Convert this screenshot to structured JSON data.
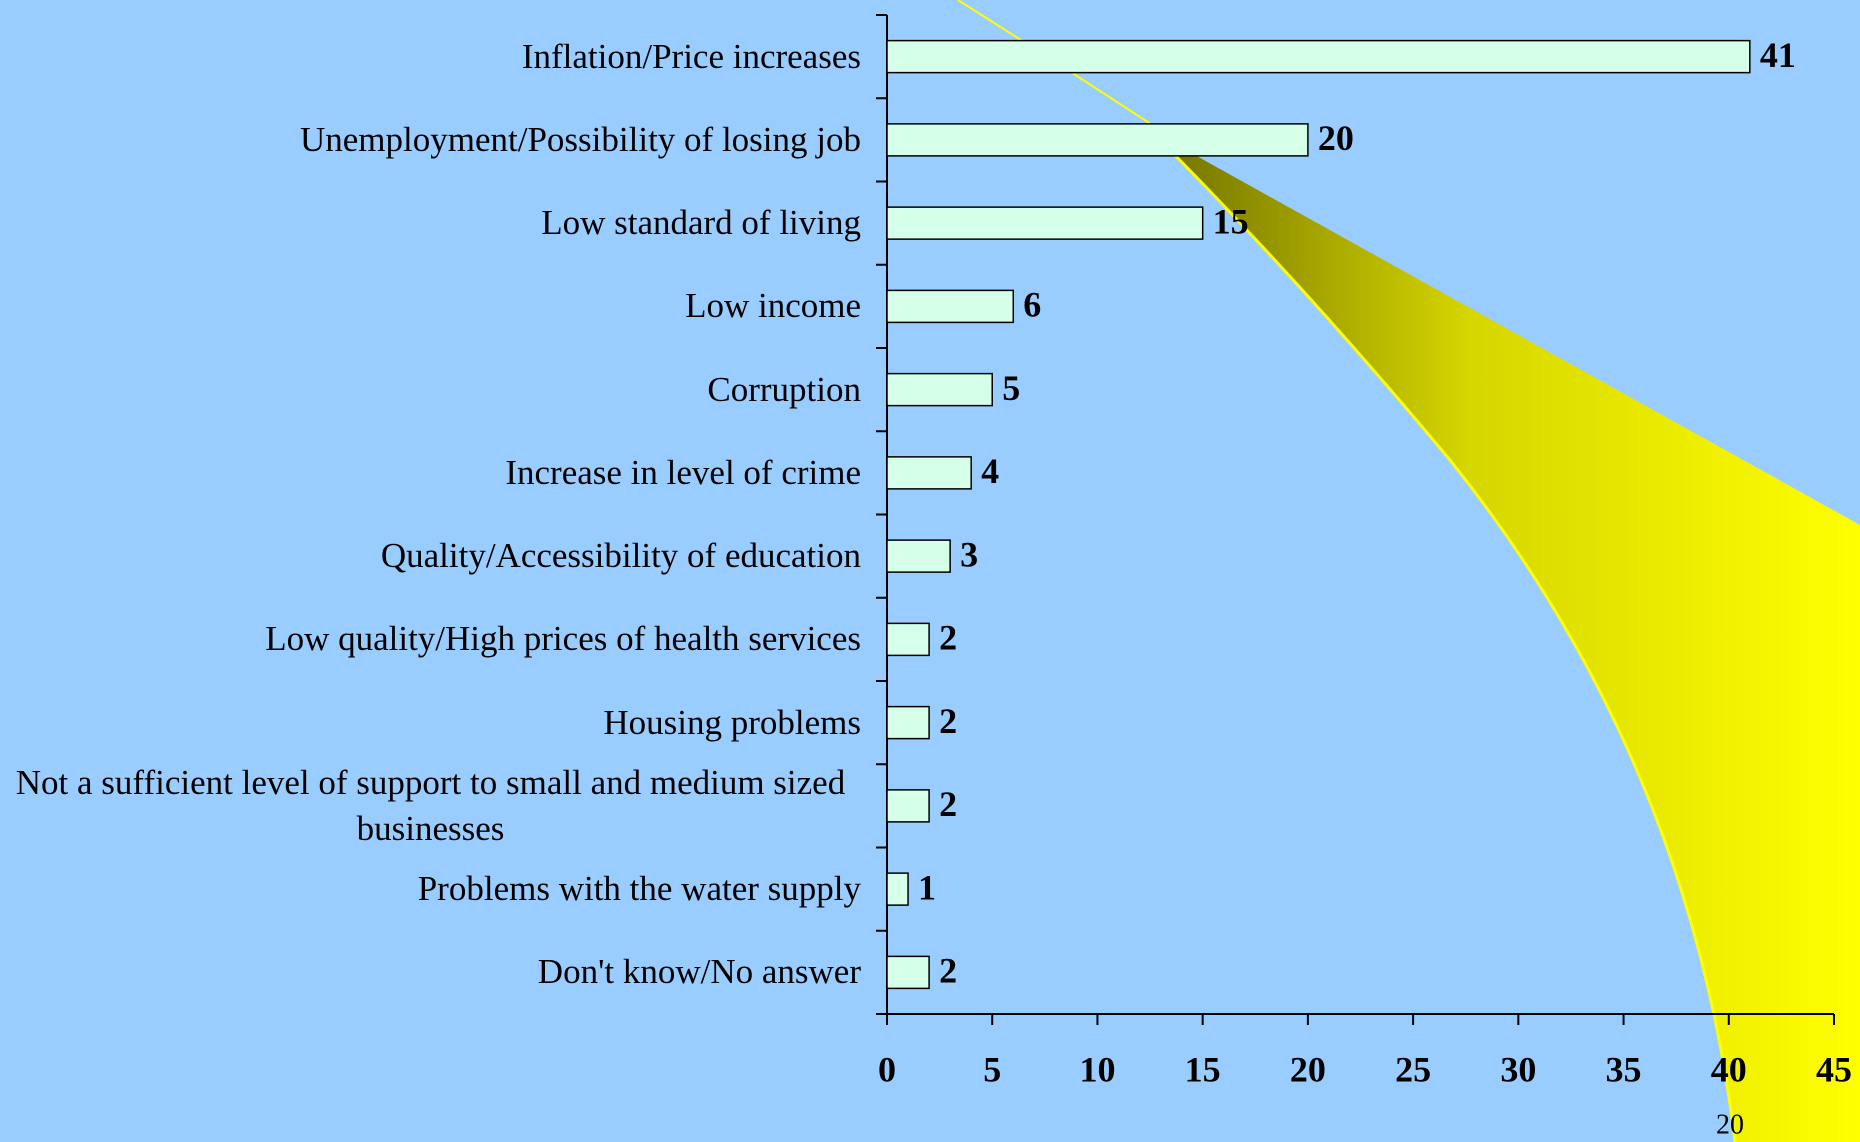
{
  "chart_data": {
    "type": "bar",
    "orientation": "horizontal",
    "categories": [
      "Inflation/Price increases",
      "Unemployment/Possibility of losing job",
      "Low standard of living",
      "Low income",
      "Corruption",
      "Increase in level of crime",
      "Quality/Accessibility of education",
      "Low quality/High prices of health services",
      "Housing problems",
      "Not a sufficient level of support to small and medium sized businesses",
      "Problems with the water supply",
      "Don't know/No answer"
    ],
    "values": [
      41,
      20,
      15,
      6,
      5,
      4,
      3,
      2,
      2,
      2,
      1,
      2
    ],
    "color": "#d6ffe9",
    "xlim": [
      0,
      45
    ],
    "xticks": [
      0,
      5,
      10,
      15,
      20,
      25,
      30,
      35,
      40,
      45
    ],
    "grid": false
  },
  "page_number": "20"
}
